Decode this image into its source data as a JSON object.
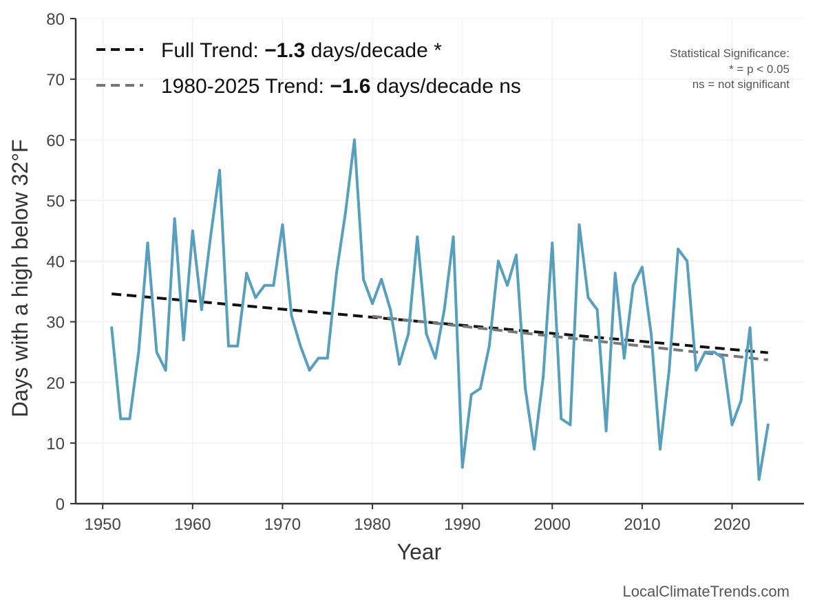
{
  "chart_data": {
    "type": "line",
    "title": "",
    "xlabel": "Year",
    "ylabel": "Days with a high below 32°F",
    "xlim": [
      1947,
      2028
    ],
    "ylim": [
      0,
      80
    ],
    "xticks": [
      1950,
      1960,
      1970,
      1980,
      1990,
      2000,
      2010,
      2020
    ],
    "yticks": [
      0,
      10,
      20,
      30,
      40,
      50,
      60,
      70,
      80
    ],
    "grid": true,
    "series": [
      {
        "name": "Days with a high below 32°F",
        "color": "#579fbd",
        "x": [
          1951,
          1952,
          1953,
          1954,
          1955,
          1956,
          1957,
          1958,
          1959,
          1960,
          1961,
          1962,
          1963,
          1964,
          1965,
          1966,
          1967,
          1968,
          1969,
          1970,
          1971,
          1972,
          1973,
          1974,
          1975,
          1976,
          1977,
          1978,
          1979,
          1980,
          1981,
          1982,
          1983,
          1984,
          1985,
          1986,
          1987,
          1988,
          1989,
          1990,
          1991,
          1992,
          1993,
          1994,
          1995,
          1996,
          1997,
          1998,
          1999,
          2000,
          2001,
          2002,
          2003,
          2004,
          2005,
          2006,
          2007,
          2008,
          2009,
          2010,
          2011,
          2012,
          2013,
          2014,
          2015,
          2016,
          2017,
          2018,
          2019,
          2020,
          2021,
          2022,
          2023,
          2024
        ],
        "values": [
          29,
          14,
          14,
          25,
          43,
          25,
          22,
          47,
          27,
          45,
          32,
          44,
          55,
          26,
          26,
          38,
          34,
          36,
          36,
          46,
          31,
          26,
          22,
          24,
          24,
          38,
          48,
          60,
          37,
          33,
          37,
          32,
          23,
          28,
          44,
          28,
          24,
          32,
          44,
          6,
          18,
          19,
          26,
          40,
          36,
          41,
          19,
          9,
          21,
          43,
          14,
          13,
          46,
          34,
          32,
          12,
          38,
          24,
          36,
          39,
          28,
          9,
          22,
          42,
          40,
          22,
          25,
          25,
          24,
          13,
          17,
          29,
          4,
          13
        ]
      }
    ],
    "trends": [
      {
        "label_prefix": "Full Trend: ",
        "value": "−1.3",
        "label_suffix": " days/decade *",
        "x_start": 1951,
        "y_start": 34.6,
        "x_end": 2024,
        "y_end": 24.9,
        "color": "#111111"
      },
      {
        "label_prefix": "1980-2025 Trend: ",
        "value": "−1.6",
        "label_suffix": " days/decade ns",
        "x_start": 1980,
        "y_start": 30.9,
        "x_end": 2024,
        "y_end": 23.7,
        "color": "#777777"
      }
    ],
    "legend": "top-left",
    "significance_note": [
      "Statistical Significance:",
      "* = p < 0.05",
      "ns = not significant"
    ]
  },
  "credit": "LocalClimateTrends.com"
}
